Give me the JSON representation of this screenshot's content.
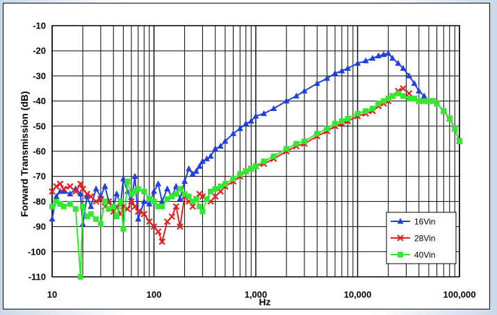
{
  "chart_data": {
    "type": "line",
    "xlabel": "Hz",
    "ylabel": "Forward Transmission (dB)",
    "x_scale": "log",
    "xlim": [
      10,
      100000
    ],
    "ylim": [
      -110,
      -10
    ],
    "x_tick_values": [
      10,
      100,
      1000,
      10000,
      100000
    ],
    "x_tick_labels": [
      "10",
      "100",
      "1,000",
      "10,000",
      "100,000"
    ],
    "y_tick_values": [
      -10,
      -20,
      -30,
      -40,
      -50,
      -60,
      -70,
      -80,
      -90,
      -100,
      -110
    ],
    "y_tick_labels": [
      "-10",
      "-20",
      "-30",
      "-40",
      "-50",
      "-60",
      "-70",
      "-80",
      "-90",
      "-100",
      "-110"
    ],
    "grid": true,
    "legend_position": "bottom-right",
    "series": [
      {
        "name": "16Vin",
        "color": "#1f3fe0",
        "marker": "triangle",
        "x": [
          10,
          11,
          12,
          13,
          15,
          17,
          19,
          20,
          22,
          24,
          27,
          30,
          33,
          36,
          40,
          43,
          47,
          50,
          55,
          60,
          65,
          70,
          80,
          90,
          100,
          110,
          120,
          135,
          150,
          165,
          180,
          200,
          220,
          240,
          260,
          280,
          300,
          330,
          360,
          400,
          450,
          500,
          600,
          700,
          800,
          900,
          1000,
          1200,
          1500,
          2000,
          2500,
          3000,
          4000,
          5000,
          6000,
          7000,
          8000,
          10000,
          12000,
          14000,
          16000,
          18000,
          20000,
          22000,
          25000,
          28000,
          32000,
          36000,
          40000,
          45000,
          50000,
          55000,
          60000,
          70000,
          80000,
          90000,
          100000
        ],
        "y": [
          -87,
          -78,
          -76,
          -76,
          -77,
          -75,
          -77,
          -89,
          -78,
          -82,
          -75,
          -78,
          -74,
          -80,
          -82,
          -77,
          -81,
          -71,
          -76,
          -80,
          -70,
          -87,
          -80,
          -81,
          -76,
          -73,
          -80,
          -75,
          -78,
          -74,
          -79,
          -72,
          -67,
          -69,
          -68,
          -66,
          -64,
          -63,
          -62,
          -59,
          -58,
          -56,
          -53,
          -51,
          -49,
          -48,
          -46,
          -45,
          -43,
          -40,
          -38,
          -36,
          -33,
          -31,
          -29,
          -28,
          -27,
          -25,
          -24,
          -23,
          -22,
          -21.5,
          -21,
          -23,
          -25,
          -27,
          -30,
          -33,
          -36,
          -38,
          -40,
          -40,
          -41,
          -44,
          -47,
          -51,
          -56
        ]
      },
      {
        "name": "28Vin",
        "color": "#e32020",
        "marker": "x",
        "x": [
          10,
          11,
          12,
          13,
          15,
          17,
          19,
          20,
          22,
          24,
          27,
          30,
          33,
          36,
          40,
          43,
          47,
          50,
          55,
          60,
          65,
          70,
          80,
          90,
          100,
          110,
          120,
          135,
          150,
          165,
          180,
          200,
          220,
          240,
          260,
          280,
          300,
          330,
          360,
          400,
          450,
          500,
          600,
          700,
          800,
          900,
          1000,
          1200,
          1500,
          2000,
          2500,
          3000,
          4000,
          5000,
          6000,
          7000,
          8000,
          10000,
          12000,
          14000,
          16000,
          18000,
          20000,
          22000,
          25000,
          28000,
          32000,
          36000,
          40000,
          45000,
          50000,
          55000,
          60000,
          70000,
          80000,
          90000,
          100000
        ],
        "y": [
          -76,
          -74,
          -73,
          -75,
          -74,
          -76,
          -73,
          -75,
          -77,
          -78,
          -80,
          -79,
          -82,
          -80,
          -84,
          -82,
          -85,
          -82,
          -83,
          -80,
          -82,
          -84,
          -85,
          -88,
          -90,
          -92,
          -96,
          -88,
          -86,
          -82,
          -90,
          -78,
          -80,
          -82,
          -79,
          -77,
          -78,
          -79,
          -80,
          -78,
          -76,
          -74,
          -72,
          -70,
          -68,
          -67,
          -66,
          -65,
          -63,
          -60,
          -58,
          -57,
          -54,
          -52,
          -50,
          -49,
          -48,
          -46,
          -45,
          -44,
          -42,
          -41,
          -40,
          -38,
          -36,
          -35,
          -37,
          -39,
          -40,
          -40,
          -40,
          -40,
          -41,
          -44,
          -47,
          -51,
          -56
        ]
      },
      {
        "name": "40Vin",
        "color": "#33e833",
        "marker": "square",
        "x": [
          10,
          11,
          12,
          13,
          15,
          17,
          19,
          20,
          22,
          24,
          27,
          30,
          33,
          36,
          40,
          43,
          47,
          50,
          55,
          60,
          65,
          70,
          80,
          90,
          100,
          110,
          120,
          135,
          150,
          165,
          180,
          200,
          220,
          240,
          260,
          280,
          300,
          330,
          360,
          400,
          450,
          500,
          600,
          700,
          800,
          900,
          1000,
          1200,
          1500,
          2000,
          2500,
          3000,
          4000,
          5000,
          6000,
          7000,
          8000,
          10000,
          12000,
          14000,
          16000,
          18000,
          20000,
          22000,
          25000,
          28000,
          32000,
          36000,
          40000,
          45000,
          50000,
          55000,
          60000,
          70000,
          80000,
          90000,
          100000
        ],
        "y": [
          -82,
          -80,
          -81,
          -82,
          -81,
          -83,
          -110,
          -82,
          -86,
          -85,
          -87,
          -89,
          -80,
          -83,
          -82,
          -86,
          -80,
          -91,
          -72,
          -77,
          -76,
          -75,
          -76,
          -79,
          -80,
          -82,
          -82,
          -79,
          -78,
          -77,
          -75,
          -77,
          -78,
          -80,
          -79,
          -82,
          -84,
          -79,
          -76,
          -75,
          -74,
          -73,
          -71,
          -69,
          -68,
          -67,
          -66,
          -64,
          -62,
          -59,
          -57,
          -56,
          -53,
          -51,
          -49,
          -48,
          -47,
          -45,
          -44,
          -43,
          -41,
          -40,
          -39,
          -38,
          -37,
          -38,
          -39,
          -39,
          -40,
          -40,
          -40,
          -40,
          -41,
          -44,
          -47,
          -51,
          -56
        ]
      }
    ]
  }
}
